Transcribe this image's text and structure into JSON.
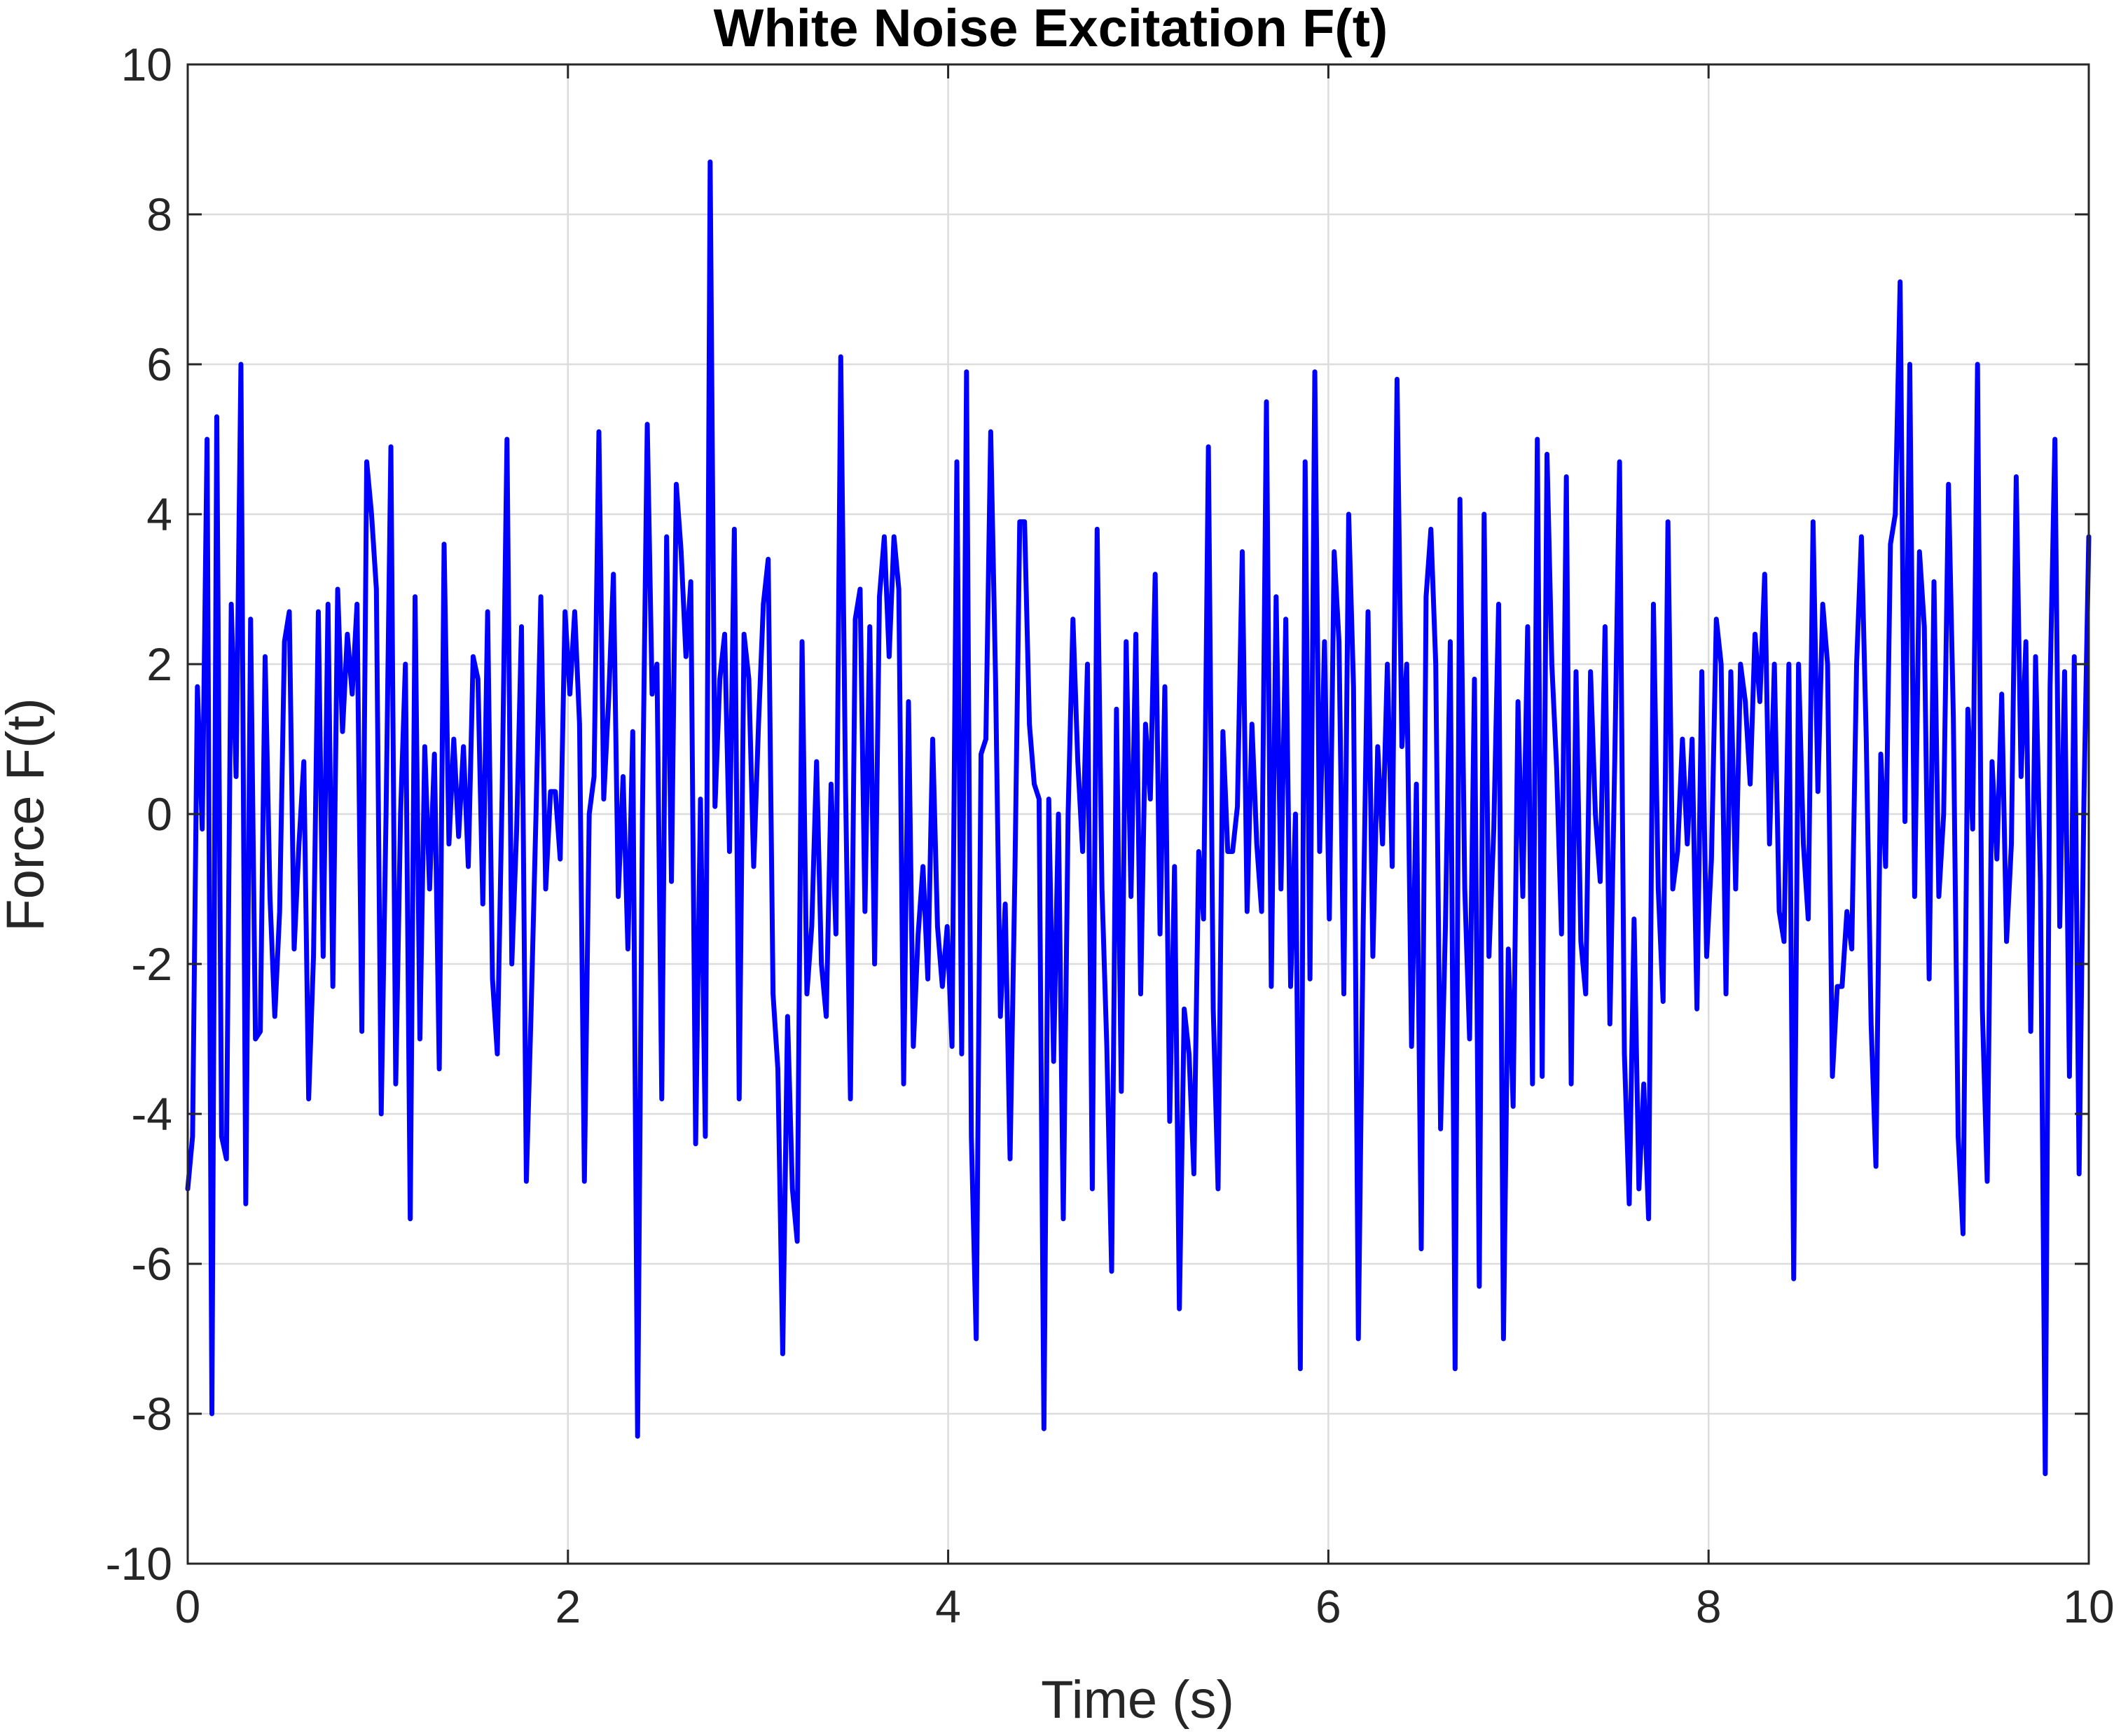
{
  "chart_data": {
    "type": "line",
    "title": "White Noise Excitation F(t)",
    "xlabel": "Time (s)",
    "ylabel": "Force F(t)",
    "xlim": [
      0,
      10
    ],
    "ylim": [
      -10,
      10
    ],
    "x_ticks": [
      0,
      2,
      4,
      6,
      8,
      10
    ],
    "y_ticks": [
      -10,
      -8,
      -6,
      -4,
      -2,
      0,
      2,
      4,
      6,
      8,
      10
    ],
    "x_tick_labels": [
      "0",
      "2",
      "4",
      "6",
      "8",
      "10"
    ],
    "y_tick_labels": [
      "-10",
      "-8",
      "-6",
      "-4",
      "-2",
      "0",
      "2",
      "4",
      "6",
      "8",
      "10"
    ],
    "grid": true,
    "line_color": "#0000ff",
    "series": [
      {
        "y": [
          -5.0,
          -4.3,
          1.7,
          -0.2,
          5.0,
          -8.0,
          5.3,
          -4.3,
          -4.6,
          2.8,
          0.5,
          6.0,
          -5.2,
          2.6,
          -3.0,
          -2.9,
          2.1,
          -1.1,
          -2.7,
          -1.3,
          2.3,
          2.7,
          -1.8,
          -0.4,
          0.7,
          -3.8,
          -1.9,
          2.7,
          -1.9,
          2.8,
          -2.3,
          3.0,
          1.1,
          2.4,
          1.6,
          2.8,
          -2.9,
          4.7,
          4.0,
          3.0,
          -4.0,
          0.0,
          4.9,
          -3.6,
          0.0,
          2.0,
          -5.4,
          2.9,
          -3.0,
          0.9,
          -1.0,
          0.8,
          -3.4,
          3.6,
          -0.4,
          1.0,
          -0.3,
          0.9,
          -0.7,
          2.1,
          1.8,
          -1.2,
          2.7,
          -2.2,
          -3.2,
          0.3,
          5.0,
          -2.0,
          -0.2,
          2.5,
          -4.9,
          -2.6,
          0.0,
          2.9,
          -1.0,
          0.3,
          0.3,
          -0.6,
          2.7,
          1.6,
          2.7,
          1.2,
          -4.9,
          0.0,
          0.5,
          5.1,
          0.2,
          1.5,
          3.2,
          -1.1,
          0.5,
          -1.8,
          1.1,
          -8.3,
          0.0,
          5.2,
          1.6,
          2.0,
          -3.8,
          3.7,
          -0.9,
          4.4,
          3.5,
          2.1,
          3.1,
          -4.4,
          0.2,
          -4.3,
          8.7,
          0.1,
          1.8,
          2.4,
          -0.5,
          3.8,
          -3.8,
          2.4,
          1.8,
          -0.7,
          1.2,
          2.8,
          3.4,
          -2.4,
          -3.4,
          -7.2,
          -2.7,
          -5.0,
          -5.7,
          2.3,
          -2.4,
          -1.5,
          0.7,
          -2.0,
          -2.7,
          0.4,
          -1.6,
          6.1,
          0.3,
          -3.8,
          2.6,
          3.0,
          -1.3,
          2.5,
          -2.0,
          2.9,
          3.7,
          2.1,
          3.7,
          3.0,
          -3.6,
          1.5,
          -3.1,
          -1.6,
          -0.7,
          -2.2,
          1.0,
          -1.5,
          -2.3,
          -1.5,
          -3.1,
          4.7,
          -3.2,
          5.9,
          -4.3,
          -7.0,
          0.8,
          1.0,
          5.1,
          1.8,
          -2.7,
          -1.2,
          -4.6,
          -0.8,
          3.9,
          3.9,
          1.2,
          0.4,
          0.2,
          -8.2,
          0.2,
          -3.3,
          0.0,
          -5.4,
          0.0,
          2.6,
          0.7,
          -0.5,
          2.0,
          -5.0,
          3.8,
          -1.0,
          -3.1,
          -6.1,
          1.4,
          -3.7,
          2.3,
          -1.1,
          2.4,
          -2.4,
          1.2,
          0.2,
          3.2,
          -1.6,
          1.7,
          -4.1,
          -0.7,
          -6.6,
          -2.6,
          -3.2,
          -4.8,
          -0.5,
          -1.4,
          4.9,
          -2.6,
          -5.0,
          1.1,
          -0.5,
          -0.5,
          0.1,
          3.5,
          -1.3,
          1.2,
          -0.4,
          -1.3,
          5.5,
          -2.3,
          2.9,
          -1.0,
          2.6,
          -2.3,
          0.0,
          -7.4,
          4.7,
          -2.2,
          5.9,
          -0.5,
          2.3,
          -1.4,
          3.5,
          2.3,
          -2.4,
          4.0,
          1.7,
          -7.0,
          -1.5,
          2.7,
          -1.9,
          0.9,
          -0.4,
          2.0,
          -0.7,
          5.8,
          0.9,
          2.0,
          -3.1,
          0.4,
          -5.8,
          2.9,
          3.8,
          2.0,
          -4.2,
          -1.5,
          2.3,
          -7.4,
          4.2,
          -1.0,
          -3.0,
          1.8,
          -6.3,
          4.0,
          -1.9,
          -0.2,
          2.8,
          -7.0,
          -1.8,
          -3.9,
          1.5,
          -1.1,
          2.5,
          -3.6,
          5.0,
          -3.5,
          4.8,
          2.0,
          0.6,
          -1.6,
          4.5,
          -3.6,
          1.9,
          -1.7,
          -2.4,
          1.9,
          0.0,
          -0.9,
          2.5,
          -2.8,
          0.7,
          4.7,
          -3.2,
          -5.2,
          -1.4,
          -5.0,
          -3.6,
          -5.4,
          2.8,
          -1.0,
          -2.5,
          3.9,
          -1.0,
          -0.5,
          1.0,
          -0.4,
          1.0,
          -2.6,
          1.9,
          -1.9,
          -0.6,
          2.6,
          2.0,
          -2.4,
          1.9,
          -1.0,
          2.0,
          1.5,
          0.4,
          2.4,
          1.5,
          3.2,
          -0.4,
          2.0,
          -1.3,
          -1.7,
          2.0,
          -6.2,
          2.0,
          -0.4,
          -1.4,
          3.9,
          0.3,
          2.8,
          2.0,
          -3.5,
          -2.3,
          -2.3,
          -1.3,
          -1.8,
          2.0,
          3.7,
          1.0,
          -2.8,
          -4.7,
          0.8,
          -0.7,
          3.6,
          4.0,
          7.1,
          -0.1,
          6.0,
          -1.1,
          3.5,
          2.5,
          -2.2,
          3.1,
          -1.1,
          0.0,
          4.4,
          1.3,
          -4.3,
          -5.6,
          1.4,
          -0.2,
          6.0,
          -2.6,
          -4.9,
          0.7,
          -0.6,
          1.6,
          -1.7,
          -0.4,
          4.5,
          0.5,
          2.3,
          -2.9,
          2.1,
          -0.9,
          -8.8,
          1.7,
          5.0,
          -1.5,
          1.9,
          -3.5,
          2.1,
          -4.8,
          0.2,
          3.7
        ]
      }
    ]
  }
}
